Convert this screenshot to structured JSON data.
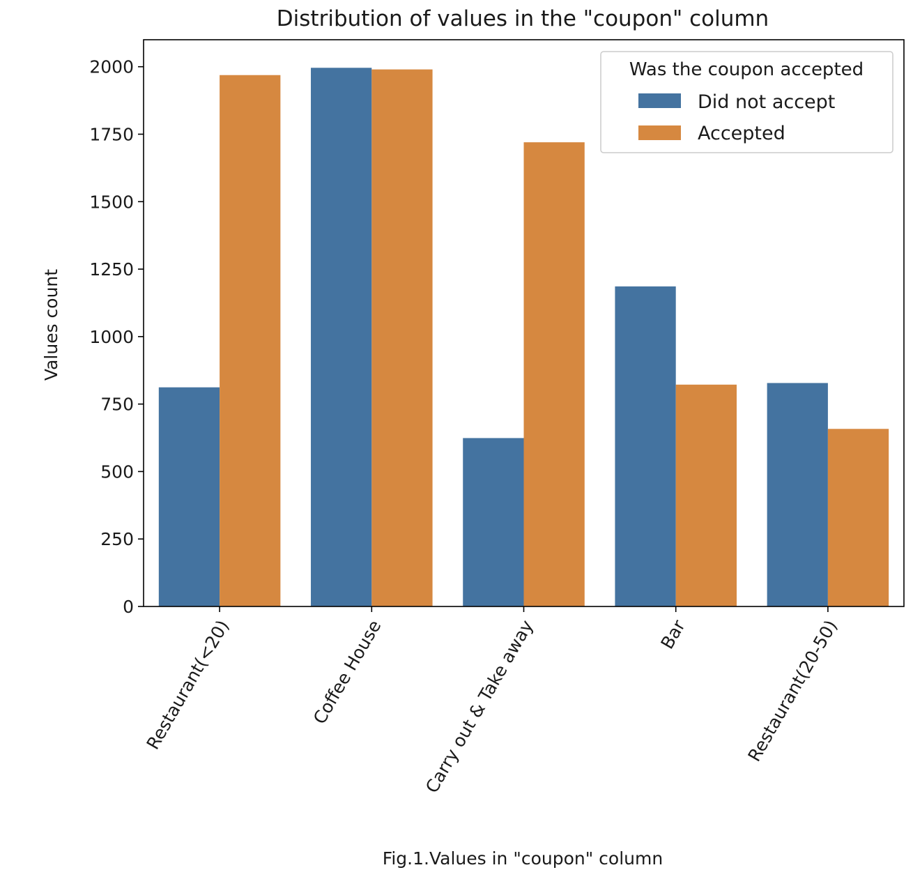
{
  "chart_data": {
    "type": "bar",
    "title": "Distribution of values in the \"coupon\" column",
    "xlabel": "Fig.1.Values in \"coupon\" column",
    "ylabel": "Values count",
    "categories": [
      "Restaurant(<20)",
      "Coffee House",
      "Carry out & Take away",
      "Bar",
      "Restaurant(20-50)"
    ],
    "series": [
      {
        "name": "Did not accept",
        "color": "#4473a0",
        "values": [
          812,
          1996,
          624,
          1186,
          828
        ]
      },
      {
        "name": "Accepted",
        "color": "#d68840",
        "values": [
          1969,
          1990,
          1720,
          822,
          658
        ]
      }
    ],
    "ylim": [
      0,
      2100
    ],
    "yticks": [
      0,
      250,
      500,
      750,
      1000,
      1250,
      1500,
      1750,
      2000
    ],
    "grid": false,
    "legend": {
      "title": "Was the coupon accepted",
      "placement": "top-right"
    }
  }
}
